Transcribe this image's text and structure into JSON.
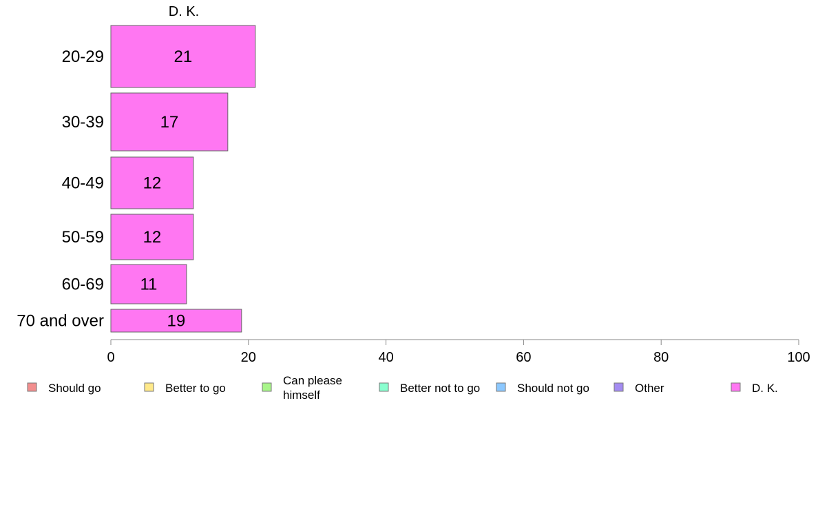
{
  "chart_data": {
    "type": "bar",
    "orientation": "horizontal",
    "series_title": "D. K.",
    "categories": [
      "20-29",
      "30-39",
      "40-49",
      "50-59",
      "60-69",
      "70 and over"
    ],
    "series": [
      {
        "name": "D. K.",
        "values": [
          21,
          17,
          12,
          12,
          11,
          19
        ]
      }
    ],
    "data_labels": [
      "21",
      "17",
      "12",
      "12",
      "11",
      "19"
    ],
    "xlim": [
      0,
      100
    ],
    "x_ticks": [
      0,
      20,
      40,
      60,
      80,
      100
    ],
    "x_tick_labels": [
      "0",
      "20",
      "40",
      "60",
      "80",
      "100"
    ],
    "grid": false,
    "legend_position": "bottom",
    "legend": [
      {
        "label": "Should go",
        "color": "#f28e8e"
      },
      {
        "label": "Better to go",
        "color": "#ffe98a"
      },
      {
        "label": "Can please himself",
        "color": "#a8f58a"
      },
      {
        "label": "Better not to go",
        "color": "#8affcf"
      },
      {
        "label": "Should not go",
        "color": "#8cc8ff"
      },
      {
        "label": "Other",
        "color": "#a48cf2"
      },
      {
        "label": "D. K.",
        "color": "#ff77f2"
      }
    ],
    "bar_color": "#ff77f2"
  }
}
